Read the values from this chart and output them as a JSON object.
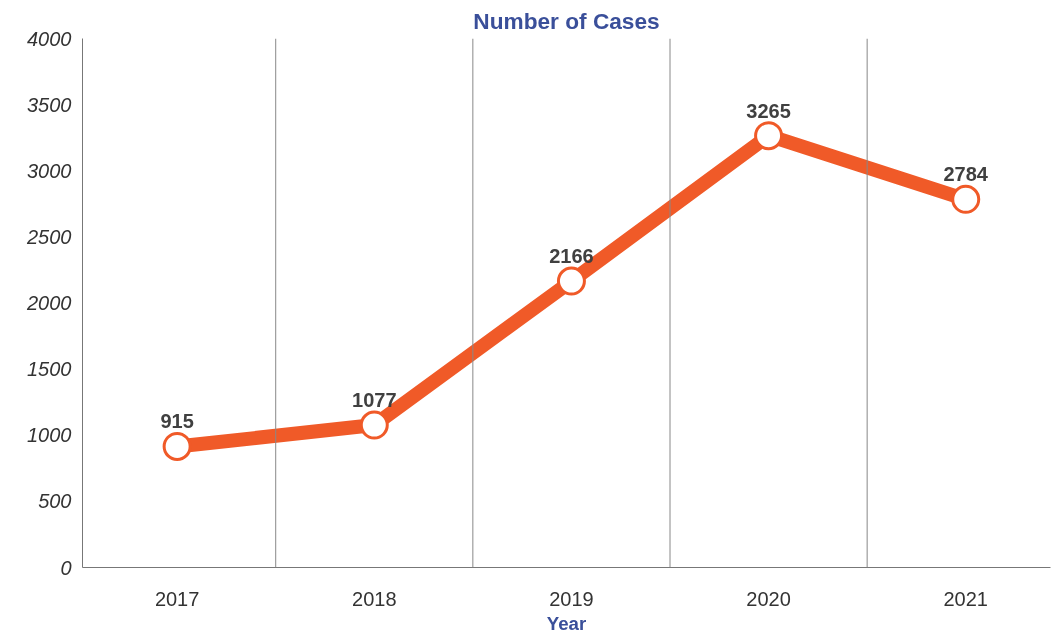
{
  "chart_data": {
    "type": "line",
    "title": "Number of Cases",
    "xlabel": "Year",
    "categories": [
      "2017",
      "2018",
      "2019",
      "2020",
      "2021"
    ],
    "series": [
      {
        "color": "#f05a28",
        "values": [
          915,
          1077,
          2166,
          3265,
          2784
        ]
      }
    ],
    "ylim": [
      0,
      4000
    ],
    "yticks": [
      0,
      500,
      1000,
      1500,
      2000,
      2500,
      3000,
      3500,
      4000
    ],
    "grid": "x",
    "marker": "circle",
    "line_style": "solid",
    "data_labels": true
  }
}
